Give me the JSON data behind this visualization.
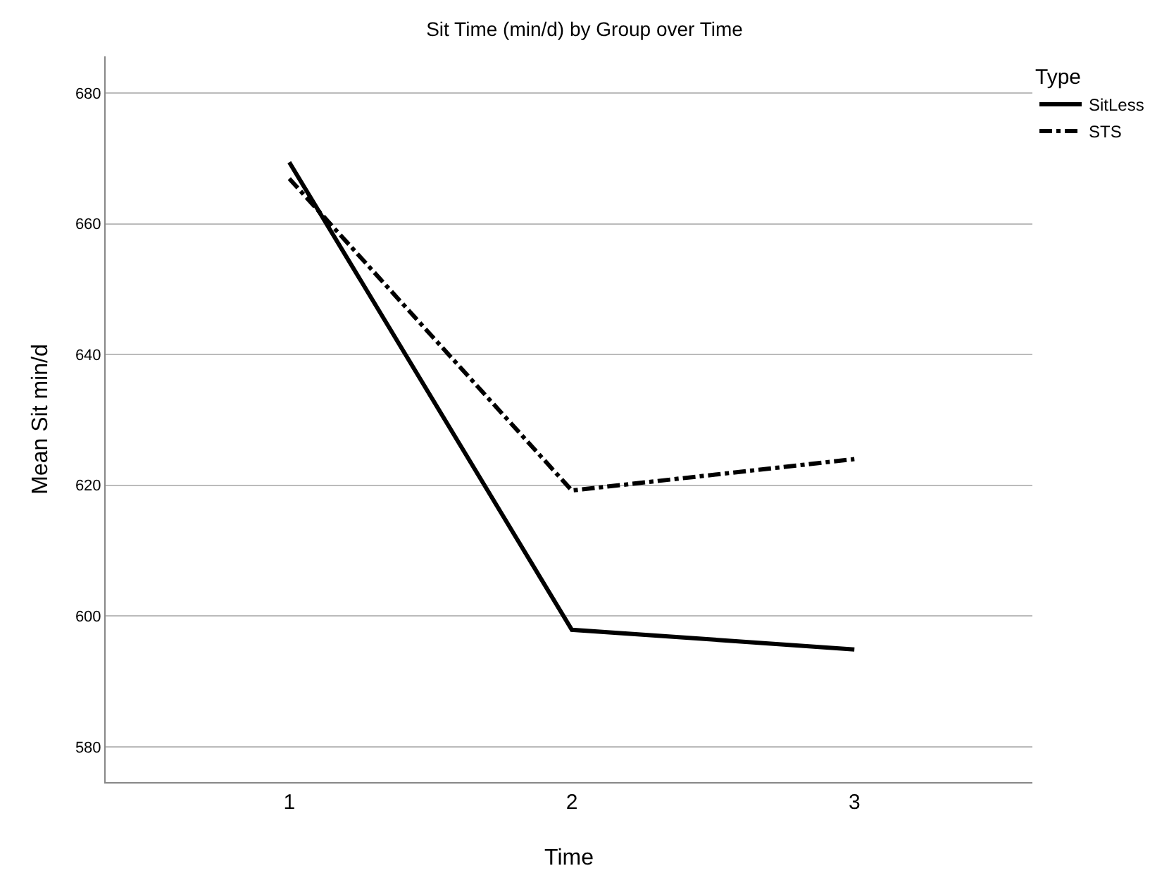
{
  "chart_data": {
    "type": "line",
    "title": "Sit Time (min/d) by Group over Time",
    "xlabel": "Time",
    "ylabel": "Mean Sit min/d",
    "legend_title": "Type",
    "legend": "top right",
    "grid": "y",
    "marker": "none",
    "x": [
      1,
      2,
      3
    ],
    "xlim": [
      0.35,
      3.63
    ],
    "xticks": [
      1,
      2,
      3
    ],
    "ylim": [
      574.6,
      685.6
    ],
    "yticks": [
      580,
      600,
      620,
      640,
      660,
      680
    ],
    "series": [
      {
        "name": "SitLess",
        "color": "#000000",
        "line_style": "solid",
        "values": [
          669.4,
          597.9,
          594.9
        ]
      },
      {
        "name": "STS",
        "color": "#000000",
        "line_style": "dashed",
        "values": [
          666.9,
          619.2,
          624.0
        ]
      }
    ]
  }
}
